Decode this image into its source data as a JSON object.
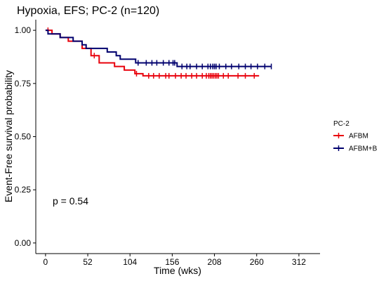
{
  "chart_data": {
    "type": "line",
    "title": "Hypoxia,  EFS; PC-2 (n=120)",
    "xlabel": "Time (wks)",
    "ylabel": "Event-Free survival probability",
    "xlim": [
      -12,
      338
    ],
    "ylim": [
      -0.05,
      1.05
    ],
    "x_ticks": [
      0,
      52,
      104,
      156,
      208,
      260,
      312
    ],
    "y_ticks": [
      0.0,
      0.25,
      0.5,
      0.75,
      1.0
    ],
    "y_tick_labels": [
      "0.00",
      "0.25",
      "0.50",
      "0.75",
      "1.00"
    ],
    "grid": false,
    "legend": {
      "title": "PC-2",
      "placement": "right",
      "entries": [
        {
          "label": "AFBM",
          "color": "#e8000b"
        },
        {
          "label": "AFBM+B",
          "color": "#00006e"
        }
      ]
    },
    "annotation": "p = 0.54",
    "series": [
      {
        "name": "AFBM",
        "color": "#e8000b",
        "steps": [
          [
            0,
            1.0
          ],
          [
            8,
            0.983
          ],
          [
            18,
            0.966
          ],
          [
            28,
            0.949
          ],
          [
            45,
            0.915
          ],
          [
            56,
            0.881
          ],
          [
            66,
            0.847
          ],
          [
            85,
            0.83
          ],
          [
            97,
            0.813
          ],
          [
            110,
            0.796
          ],
          [
            120,
            0.786
          ],
          [
            263,
            0.786
          ]
        ],
        "censored": [
          [
            3,
            1.0
          ],
          [
            60,
            0.881
          ],
          [
            112,
            0.796
          ],
          [
            127,
            0.786
          ],
          [
            133,
            0.786
          ],
          [
            140,
            0.786
          ],
          [
            148,
            0.786
          ],
          [
            152,
            0.786
          ],
          [
            160,
            0.786
          ],
          [
            167,
            0.786
          ],
          [
            173,
            0.786
          ],
          [
            180,
            0.786
          ],
          [
            186,
            0.786
          ],
          [
            193,
            0.786
          ],
          [
            198,
            0.786
          ],
          [
            201,
            0.786
          ],
          [
            203,
            0.786
          ],
          [
            205,
            0.786
          ],
          [
            207,
            0.786
          ],
          [
            209,
            0.786
          ],
          [
            211,
            0.786
          ],
          [
            213,
            0.786
          ],
          [
            219,
            0.786
          ],
          [
            225,
            0.786
          ],
          [
            237,
            0.786
          ],
          [
            246,
            0.786
          ],
          [
            257,
            0.786
          ]
        ]
      },
      {
        "name": "AFBM+B",
        "color": "#00006e",
        "steps": [
          [
            0,
            1.0
          ],
          [
            3,
            0.983
          ],
          [
            18,
            0.966
          ],
          [
            34,
            0.949
          ],
          [
            45,
            0.932
          ],
          [
            50,
            0.915
          ],
          [
            76,
            0.898
          ],
          [
            87,
            0.881
          ],
          [
            92,
            0.864
          ],
          [
            111,
            0.847
          ],
          [
            162,
            0.83
          ],
          [
            278,
            0.83
          ]
        ],
        "censored": [
          [
            114,
            0.847
          ],
          [
            124,
            0.847
          ],
          [
            131,
            0.847
          ],
          [
            137,
            0.847
          ],
          [
            145,
            0.847
          ],
          [
            152,
            0.847
          ],
          [
            157,
            0.847
          ],
          [
            159,
            0.847
          ],
          [
            168,
            0.83
          ],
          [
            174,
            0.83
          ],
          [
            178,
            0.83
          ],
          [
            186,
            0.83
          ],
          [
            193,
            0.83
          ],
          [
            200,
            0.83
          ],
          [
            203,
            0.83
          ],
          [
            206,
            0.83
          ],
          [
            208,
            0.83
          ],
          [
            210,
            0.83
          ],
          [
            214,
            0.83
          ],
          [
            222,
            0.83
          ],
          [
            229,
            0.83
          ],
          [
            238,
            0.83
          ],
          [
            246,
            0.83
          ],
          [
            253,
            0.83
          ],
          [
            261,
            0.83
          ],
          [
            270,
            0.83
          ],
          [
            278,
            0.83
          ]
        ]
      }
    ]
  }
}
